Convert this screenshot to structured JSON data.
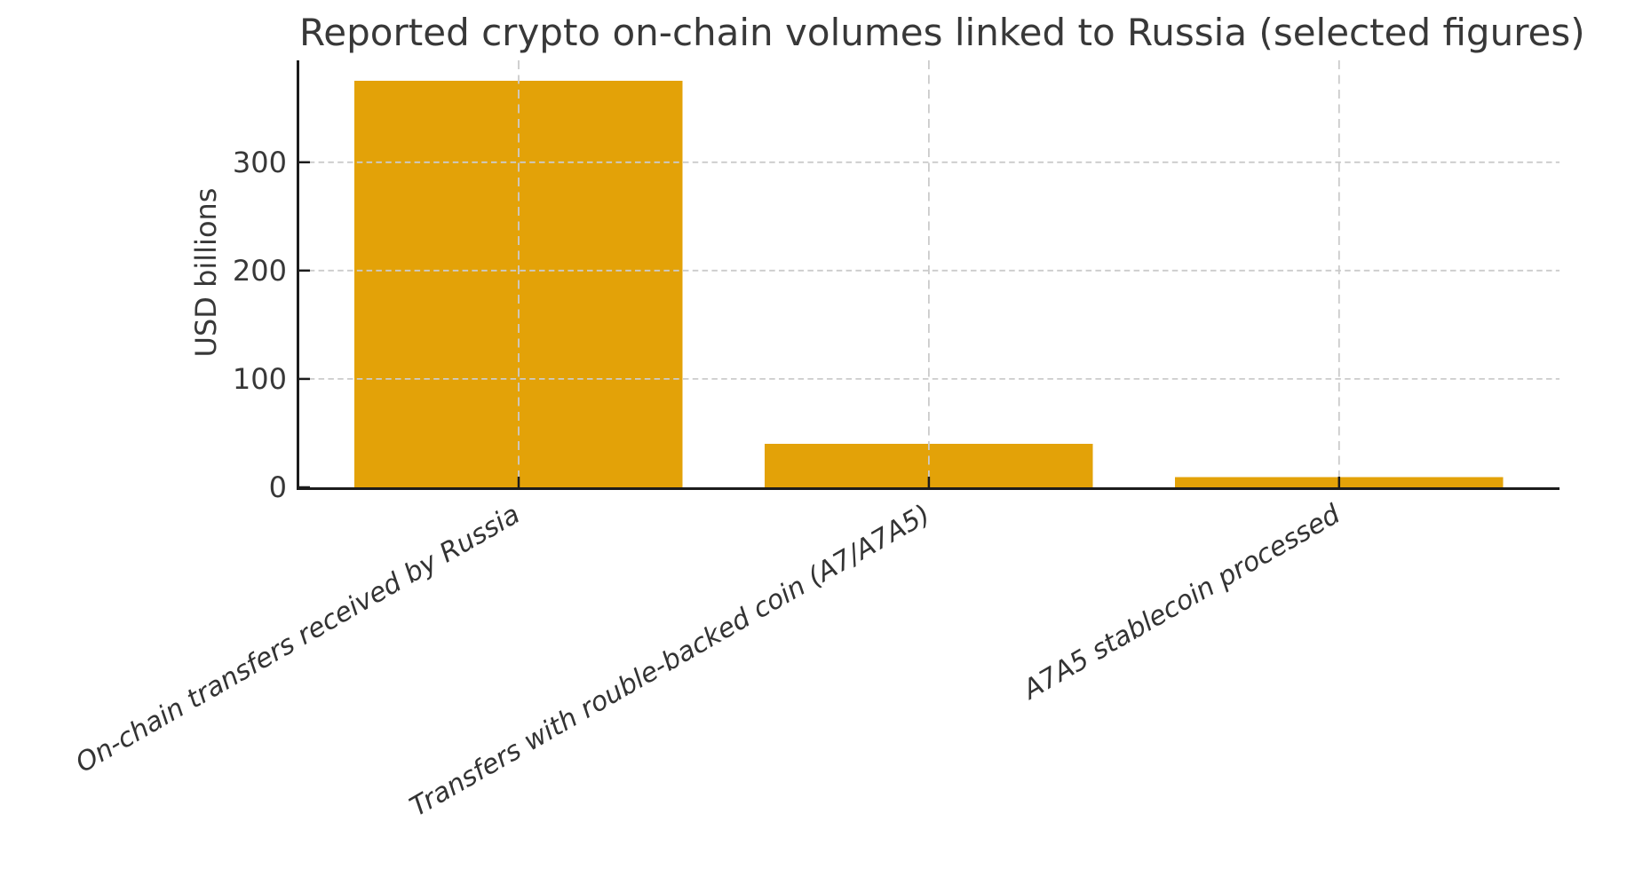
{
  "chart_data": {
    "type": "bar",
    "title": "Reported crypto on-chain volumes linked to Russia (selected figures)",
    "xlabel": "",
    "ylabel": "USD billions",
    "categories": [
      "On-chain transfers received by Russia",
      "Transfers with rouble-backed coin (A7/A7A5)",
      "A7A5 stablecoin processed"
    ],
    "values": [
      375,
      40,
      9.3
    ],
    "ylim": [
      0,
      394
    ],
    "yticks": [
      0,
      100,
      200,
      300
    ],
    "grid": true,
    "grid_style": "dashed",
    "legend": "none",
    "bar_relative_width": 0.8,
    "x_tick_rotation_deg": 30,
    "x_tick_font_style": "italic",
    "colors": {
      "bar": "#E3A208",
      "text": "#383838",
      "axis": "#1c1c1c",
      "grid": "#cbcbcb",
      "background": "#ffffff"
    }
  }
}
